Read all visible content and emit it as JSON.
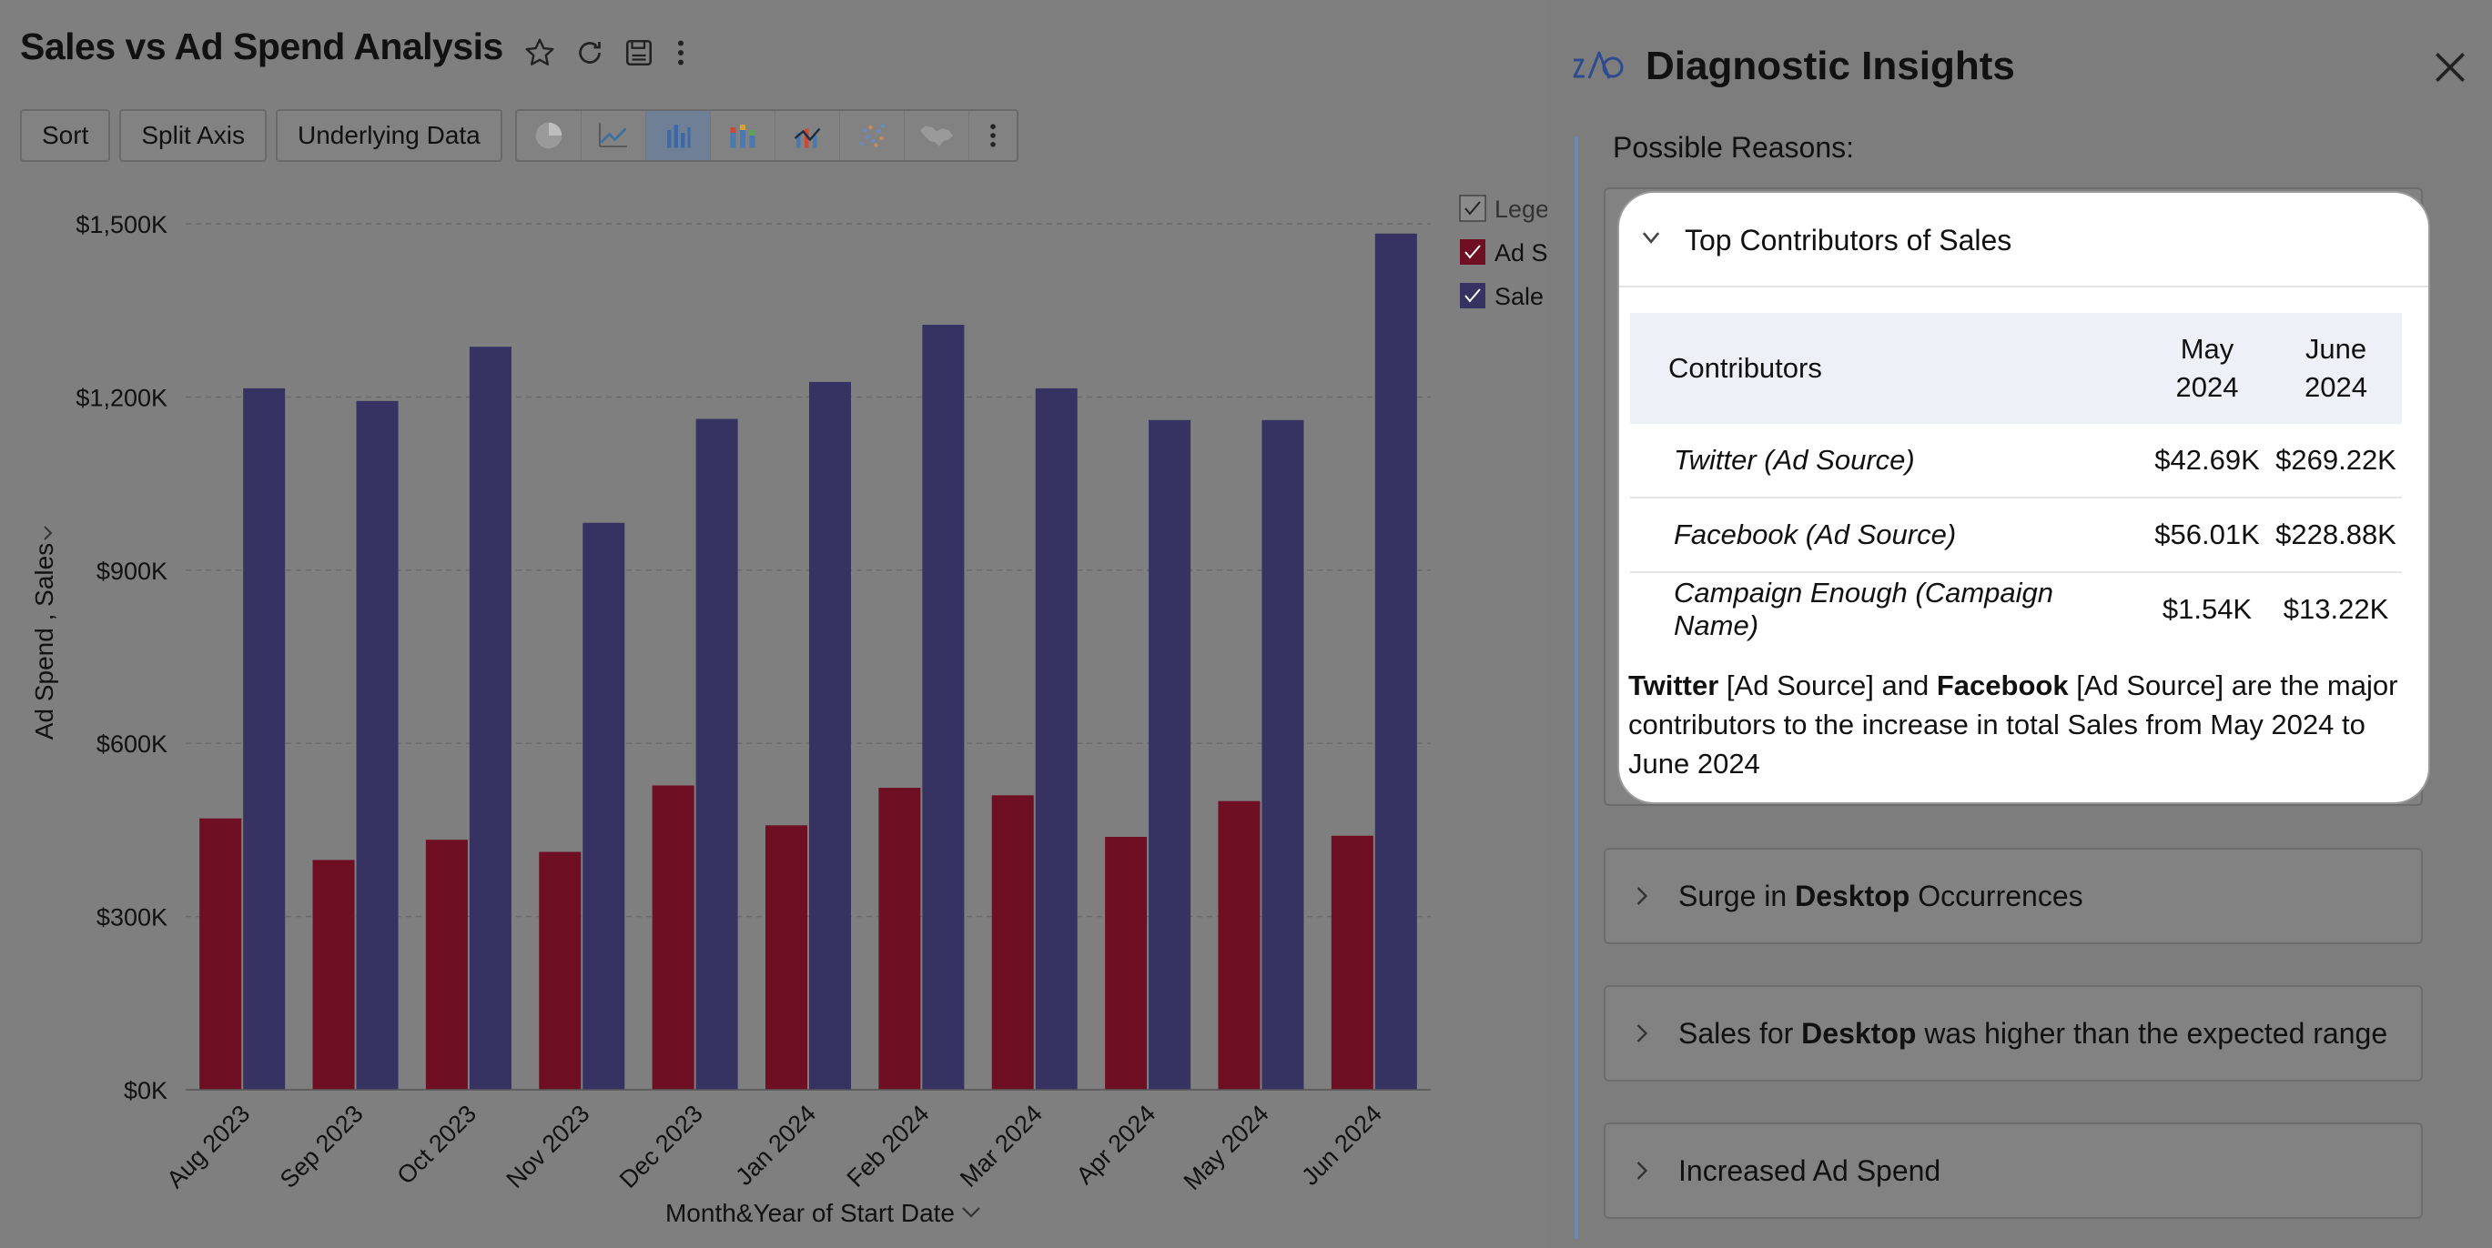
{
  "report": {
    "title": "Sales vs Ad Spend Analysis",
    "toolbar": {
      "sort_label": "Sort",
      "split_axis_label": "Split Axis",
      "underlying_data_label": "Underlying Data",
      "chart_types": [
        "pie-chart-icon",
        "line-chart-icon",
        "bar-chart-icon",
        "stacked-bar-icon",
        "combo-chart-icon",
        "scatter-chart-icon",
        "map-chart-icon"
      ],
      "active_chart_type": "bar-chart-icon"
    }
  },
  "chart_data": {
    "type": "bar",
    "categories": [
      "Aug 2023",
      "Sep 2023",
      "Oct 2023",
      "Nov 2023",
      "Dec 2023",
      "Jan 2024",
      "Feb 2024",
      "Mar 2024",
      "Apr 2024",
      "May 2024",
      "Jun 2024"
    ],
    "series": [
      {
        "name": "Ad S",
        "color": "#6e0f23",
        "values": [
          470,
          398,
          433,
          412,
          527,
          458,
          523,
          510,
          438,
          500,
          440
        ]
      },
      {
        "name": "Sale",
        "color": "#363363",
        "values": [
          1215,
          1193,
          1287,
          982,
          1162,
          1226,
          1325,
          1215,
          1160,
          1160,
          1483
        ]
      }
    ],
    "legend_title": "Lege",
    "ylabel": "Ad Spend , Sales",
    "xlabel": "Month&Year of Start Date",
    "ylim": [
      0,
      1500
    ],
    "yticks": [
      0,
      300,
      600,
      900,
      1200,
      1500
    ],
    "ytick_labels": [
      "$0K",
      "$300K",
      "$600K",
      "$900K",
      "$1,200K",
      "$1,500K"
    ],
    "grid": true,
    "legend_position": "right"
  },
  "panel": {
    "title": "Diagnostic Insights",
    "reasons_label": "Possible Reasons:",
    "top_card": {
      "title": "Top Contributors of Sales",
      "columns": [
        "Contributors",
        "May\n2024",
        "June\n2024"
      ],
      "rows": [
        [
          "Twitter (Ad Source)",
          "$42.69K",
          "$269.22K"
        ],
        [
          "Facebook (Ad Source)",
          "$56.01K",
          "$228.88K"
        ],
        [
          "Campaign Enough (Campaign Name)",
          "$1.54K",
          "$13.22K"
        ]
      ],
      "summary": {
        "a": "Twitter",
        "b": " [Ad Source] and ",
        "c": "Facebook",
        "d": " [Ad Source] are the major contributors to the increase in total Sales from May 2024 to June 2024"
      }
    },
    "reasons": [
      {
        "pre": "Surge in ",
        "bold": "Desktop",
        "post": " Occurrences"
      },
      {
        "pre": "Sales for ",
        "bold": "Desktop",
        "post": " was higher than the expected range"
      },
      {
        "pre": "Increased Ad Spend",
        "bold": "",
        "post": ""
      }
    ]
  }
}
